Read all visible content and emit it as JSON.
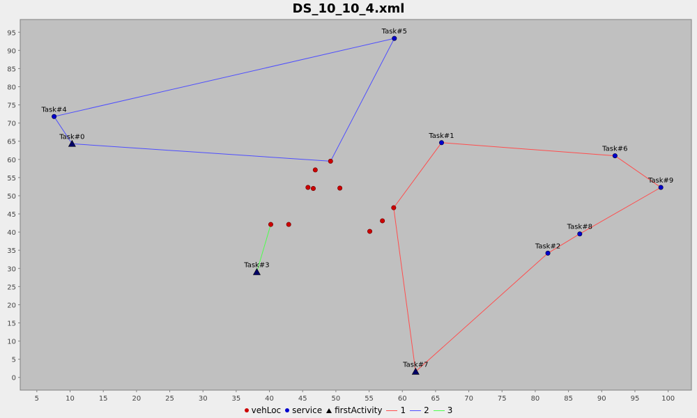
{
  "chart_data": {
    "type": "scatter",
    "title": "DS_10_10_4.xml",
    "xlabel": "",
    "ylabel": "",
    "xlim": [
      2.5,
      103.5
    ],
    "ylim": [
      -3.5,
      98.5
    ],
    "x_ticks": [
      5,
      10,
      15,
      20,
      25,
      30,
      35,
      40,
      45,
      50,
      55,
      60,
      65,
      70,
      75,
      80,
      85,
      90,
      95,
      100
    ],
    "y_ticks": [
      0,
      5,
      10,
      15,
      20,
      25,
      30,
      35,
      40,
      45,
      50,
      55,
      60,
      65,
      70,
      75,
      80,
      85,
      90,
      95
    ],
    "grid": false,
    "legend_position": "bottom",
    "colors": {
      "background": "#c0c0c0",
      "vehLoc": "#cc0000",
      "service": "#0000cc",
      "firstActivity": "#000066",
      "route1": "#ff4d4d",
      "route2": "#4d4dff",
      "route3": "#4dff4d"
    },
    "vehLoc": [
      {
        "x": 40.2,
        "y": 42.1
      },
      {
        "x": 42.9,
        "y": 42.1
      },
      {
        "x": 45.8,
        "y": 52.3
      },
      {
        "x": 46.6,
        "y": 52.0
      },
      {
        "x": 46.9,
        "y": 57.1
      },
      {
        "x": 50.6,
        "y": 52.1
      },
      {
        "x": 55.1,
        "y": 40.2
      },
      {
        "x": 57.0,
        "y": 43.1
      },
      {
        "x": 58.7,
        "y": 46.7
      },
      {
        "x": 49.2,
        "y": 59.5
      }
    ],
    "tasks": [
      {
        "label": "Task#0",
        "x": 10.3,
        "y": 64.3,
        "first": true
      },
      {
        "label": "Task#1",
        "x": 65.9,
        "y": 64.6,
        "first": false
      },
      {
        "label": "Task#2",
        "x": 81.9,
        "y": 34.2,
        "first": false
      },
      {
        "label": "Task#3",
        "x": 38.1,
        "y": 29.0,
        "first": true
      },
      {
        "label": "Task#4",
        "x": 7.6,
        "y": 71.8,
        "first": false
      },
      {
        "label": "Task#5",
        "x": 58.8,
        "y": 93.3,
        "first": false
      },
      {
        "label": "Task#6",
        "x": 92.0,
        "y": 61.0,
        "first": false
      },
      {
        "label": "Task#7",
        "x": 62.0,
        "y": 1.6,
        "first": true
      },
      {
        "label": "Task#8",
        "x": 86.7,
        "y": 39.5,
        "first": false
      },
      {
        "label": "Task#9",
        "x": 98.9,
        "y": 52.3,
        "first": false
      }
    ],
    "series": [
      {
        "name": "1",
        "points": [
          [
            62.0,
            1.6
          ],
          [
            81.9,
            34.2
          ],
          [
            86.7,
            39.5
          ],
          [
            98.9,
            52.3
          ],
          [
            92.0,
            61.0
          ],
          [
            65.9,
            64.6
          ],
          [
            58.7,
            46.7
          ],
          [
            62.0,
            1.6
          ]
        ]
      },
      {
        "name": "2",
        "points": [
          [
            10.3,
            64.3
          ],
          [
            7.6,
            71.8
          ],
          [
            58.8,
            93.3
          ],
          [
            49.2,
            59.5
          ],
          [
            10.3,
            64.3
          ]
        ]
      },
      {
        "name": "3",
        "points": [
          [
            38.1,
            29.0
          ],
          [
            40.2,
            42.1
          ]
        ]
      }
    ],
    "legend": [
      {
        "label": "vehLoc",
        "symbol": "dot",
        "color": "#cc0000"
      },
      {
        "label": "service",
        "symbol": "dot",
        "color": "#0000cc"
      },
      {
        "label": "firstActivity",
        "symbol": "triangle",
        "color": "#000000"
      },
      {
        "label": "1",
        "symbol": "line",
        "color": "#ff4d4d"
      },
      {
        "label": "2",
        "symbol": "line",
        "color": "#4d4dff"
      },
      {
        "label": "3",
        "symbol": "line",
        "color": "#4dff4d"
      }
    ]
  }
}
